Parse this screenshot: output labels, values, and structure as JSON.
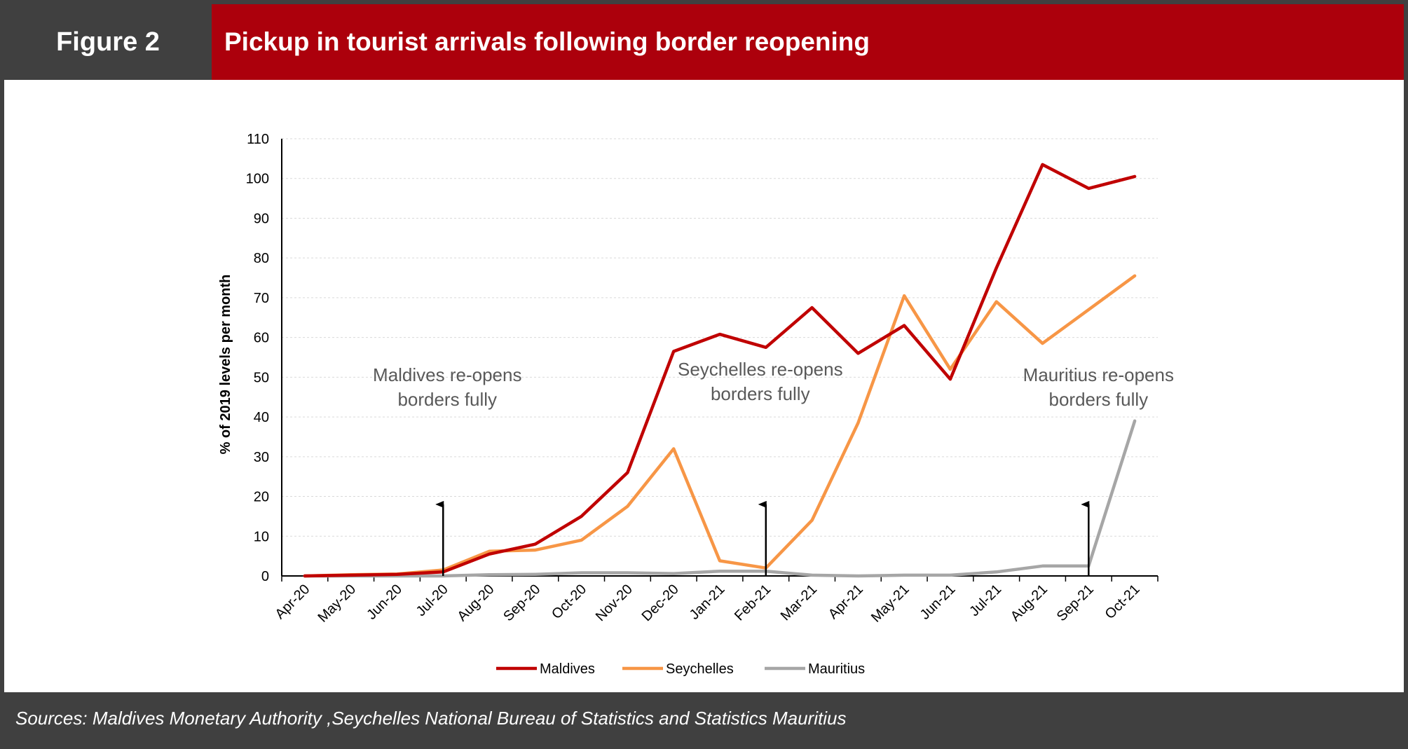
{
  "header": {
    "figure_label": "Figure 2",
    "title": "Pickup in tourist arrivals following border reopening"
  },
  "footer": {
    "sources": "Sources: Maldives Monetary Authority ,Seychelles National Bureau of Statistics and Statistics Mauritius"
  },
  "chart_data": {
    "type": "line",
    "title": "",
    "xlabel": "",
    "ylabel": "% of 2019 levels per month",
    "ylim": [
      0,
      110
    ],
    "yticks": [
      0,
      10,
      20,
      30,
      40,
      50,
      60,
      70,
      80,
      90,
      100,
      110
    ],
    "grid": true,
    "legend_position": "bottom",
    "categories": [
      "Apr-20",
      "May-20",
      "Jun-20",
      "Jul-20",
      "Aug-20",
      "Sep-20",
      "Oct-20",
      "Nov-20",
      "Dec-20",
      "Jan-21",
      "Feb-21",
      "Mar-21",
      "Apr-21",
      "May-21",
      "Jun-21",
      "Jul-21",
      "Aug-21",
      "Sep-21",
      "Oct-21"
    ],
    "series": [
      {
        "name": "Maldives",
        "color": "#c00000",
        "values": [
          0,
          0.2,
          0.4,
          1.0,
          5.5,
          8.0,
          15.0,
          26.0,
          56.5,
          60.8,
          57.5,
          67.5,
          56.0,
          63.0,
          49.5,
          77.5,
          103.5,
          97.5,
          100.5
        ]
      },
      {
        "name": "Seychelles",
        "color": "#f79646",
        "values": [
          0,
          0.3,
          0.5,
          1.5,
          6.2,
          6.5,
          9.0,
          17.5,
          32.0,
          3.8,
          2.0,
          14.0,
          38.5,
          70.5,
          52.0,
          69.0,
          58.5,
          67.0,
          75.5
        ]
      },
      {
        "name": "Mauritius",
        "color": "#a6a6a6",
        "values": [
          0,
          0,
          0,
          0,
          0.3,
          0.4,
          0.8,
          0.8,
          0.6,
          1.2,
          1.2,
          0.2,
          0,
          0.2,
          0.2,
          1.0,
          2.5,
          2.5,
          39.0
        ]
      }
    ],
    "annotations": [
      {
        "lines": [
          "Maldives re-opens",
          "borders fully"
        ],
        "category": "Jul-20",
        "arrow_from": 18,
        "arrow_to": 0
      },
      {
        "lines": [
          "Seychelles re-opens",
          "borders fully"
        ],
        "category": "Feb-21",
        "arrow_from": 18,
        "arrow_to": 0
      },
      {
        "lines": [
          "Mauritius re-opens",
          "borders fully"
        ],
        "category": "Sep-21",
        "arrow_from": 18,
        "arrow_to": 0
      }
    ]
  }
}
